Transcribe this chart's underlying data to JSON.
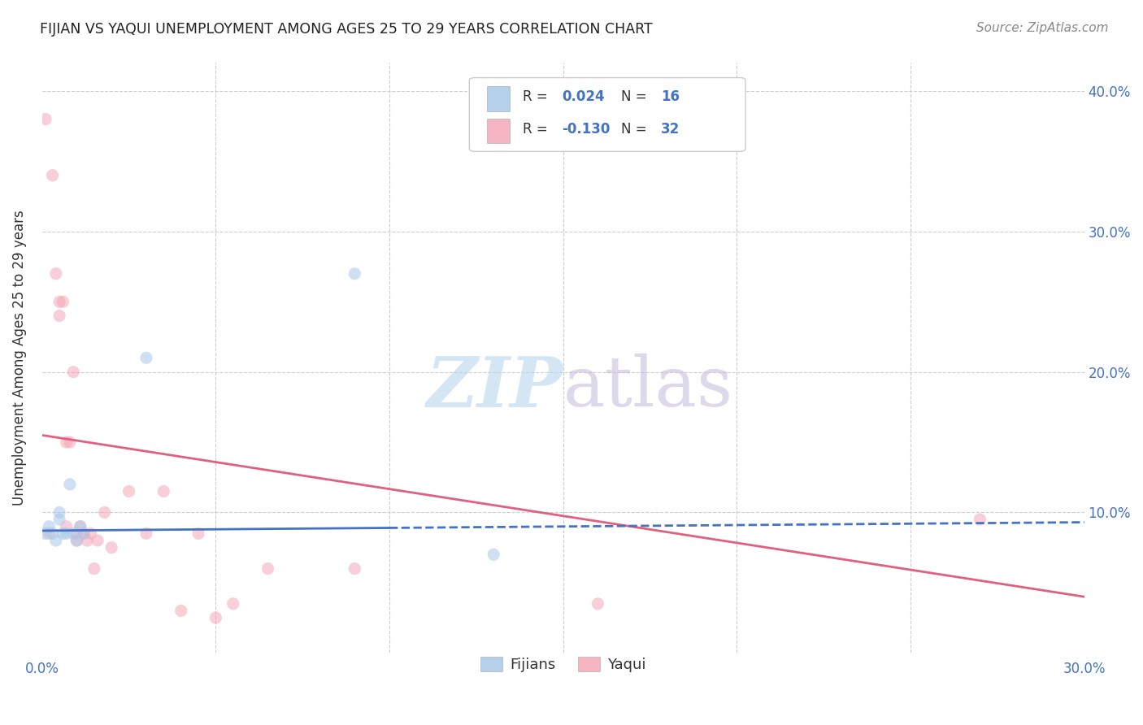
{
  "title": "FIJIAN VS YAQUI UNEMPLOYMENT AMONG AGES 25 TO 29 YEARS CORRELATION CHART",
  "source": "Source: ZipAtlas.com",
  "ylabel": "Unemployment Among Ages 25 to 29 years",
  "xlim": [
    0.0,
    0.3
  ],
  "ylim": [
    0.0,
    0.42
  ],
  "xticks": [
    0.0,
    0.05,
    0.1,
    0.15,
    0.2,
    0.25,
    0.3
  ],
  "yticks": [
    0.0,
    0.1,
    0.2,
    0.3,
    0.4
  ],
  "xtick_labels": [
    "0.0%",
    "",
    "",
    "",
    "",
    "",
    "30.0%"
  ],
  "ytick_labels": [
    "",
    "10.0%",
    "20.0%",
    "30.0%",
    "40.0%"
  ],
  "legend_r_fijian": "R =  0.024",
  "legend_n_fijian": "N = 16",
  "legend_r_yaqui": "R = -0.130",
  "legend_n_yaqui": "N = 32",
  "fijian_color": "#a8c8e8",
  "yaqui_color": "#f4a8b8",
  "fijian_line_color": "#4472c4",
  "yaqui_line_color": "#e06080",
  "fijian_x": [
    0.001,
    0.002,
    0.003,
    0.004,
    0.005,
    0.005,
    0.006,
    0.007,
    0.008,
    0.009,
    0.01,
    0.011,
    0.012,
    0.03,
    0.09,
    0.13
  ],
  "fijian_y": [
    0.085,
    0.09,
    0.085,
    0.08,
    0.095,
    0.1,
    0.085,
    0.085,
    0.12,
    0.085,
    0.08,
    0.09,
    0.085,
    0.21,
    0.27,
    0.07
  ],
  "yaqui_x": [
    0.001,
    0.002,
    0.003,
    0.004,
    0.005,
    0.005,
    0.006,
    0.007,
    0.007,
    0.008,
    0.009,
    0.01,
    0.01,
    0.011,
    0.012,
    0.013,
    0.014,
    0.015,
    0.016,
    0.018,
    0.02,
    0.025,
    0.03,
    0.035,
    0.04,
    0.045,
    0.05,
    0.055,
    0.065,
    0.09,
    0.16,
    0.27
  ],
  "yaqui_y": [
    0.38,
    0.085,
    0.34,
    0.27,
    0.24,
    0.25,
    0.25,
    0.15,
    0.09,
    0.15,
    0.2,
    0.085,
    0.08,
    0.09,
    0.085,
    0.08,
    0.085,
    0.06,
    0.08,
    0.1,
    0.075,
    0.115,
    0.085,
    0.115,
    0.03,
    0.085,
    0.025,
    0.035,
    0.06,
    0.06,
    0.035,
    0.095
  ],
  "fijian_trend_x0": 0.0,
  "fijian_trend_x1": 0.1,
  "fijian_trend_x2": 0.3,
  "fijian_trend_y0": 0.087,
  "fijian_trend_y1": 0.089,
  "fijian_trend_y2": 0.093,
  "yaqui_trend_x0": 0.0,
  "yaqui_trend_x1": 0.3,
  "yaqui_trend_y0": 0.155,
  "yaqui_trend_y1": 0.04,
  "background_color": "#ffffff",
  "grid_color": "#cccccc",
  "marker_size": 120,
  "marker_alpha": 0.55
}
